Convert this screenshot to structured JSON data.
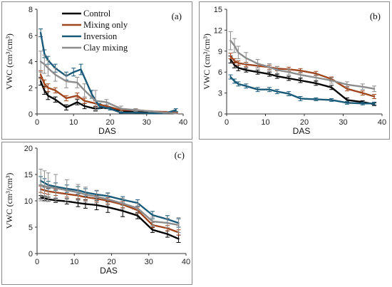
{
  "colors": {
    "Control": "#000000",
    "Mixing only": "#a0461f",
    "Inversion": "#1a5a78",
    "Clay mixing": "#8c8c8c"
  },
  "chart_data": [
    {
      "panel": "(a)",
      "type": "line",
      "xlabel": "DAS",
      "ylabel": "VWC (cm³/cm³)",
      "xlim": [
        0,
        40
      ],
      "ylim": [
        0,
        8
      ],
      "xticks": [
        0,
        10,
        20,
        30,
        40
      ],
      "yticks": [
        0,
        2,
        4,
        6,
        8
      ],
      "legend": {
        "placement": "top-left-inside",
        "entries": [
          "Control",
          "Mixing only",
          "Inversion",
          "Clay mixing"
        ]
      },
      "series": [
        {
          "name": "Control",
          "x": [
            1,
            2,
            3,
            5,
            8,
            11,
            13,
            16,
            19,
            23,
            27,
            31,
            35,
            38
          ],
          "y": [
            2.5,
            1.8,
            1.4,
            1.1,
            0.5,
            0.9,
            0.6,
            0.4,
            0.5,
            0.2,
            0.15,
            0.1,
            0.1,
            0.05
          ],
          "err": [
            0.3,
            0.3,
            0.3,
            0.2,
            0.2,
            0.2,
            0.2,
            0.15,
            0.1,
            0.1,
            0.05,
            0.05,
            0.05,
            0.05
          ]
        },
        {
          "name": "Mixing only",
          "x": [
            1,
            2,
            3,
            5,
            8,
            11,
            13,
            16,
            19,
            23,
            27,
            31,
            35,
            38
          ],
          "y": [
            3.0,
            2.3,
            2.0,
            1.8,
            1.2,
            1.4,
            1.0,
            0.8,
            0.6,
            0.3,
            0.3,
            0.2,
            0.15,
            0.1
          ],
          "err": [
            0.3,
            0.3,
            0.3,
            0.2,
            0.2,
            0.2,
            0.2,
            0.2,
            0.1,
            0.1,
            0.1,
            0.05,
            0.05,
            0.05
          ]
        },
        {
          "name": "Inversion",
          "x": [
            1,
            2,
            3,
            5,
            8,
            10,
            12,
            15,
            17,
            20,
            23,
            27,
            31,
            35,
            38
          ],
          "y": [
            6.2,
            4.6,
            4.1,
            3.5,
            2.9,
            3.2,
            3.4,
            1.5,
            0.6,
            0.4,
            0.1,
            0.1,
            0.05,
            0.05,
            0.3
          ],
          "err": [
            0.3,
            0.3,
            0.3,
            0.3,
            0.3,
            0.3,
            0.4,
            0.3,
            0.2,
            0.1,
            0.05,
            0.05,
            0.05,
            0.05,
            0.1
          ]
        },
        {
          "name": "Clay mixing",
          "x": [
            1,
            2,
            3,
            5,
            8,
            11,
            13,
            16,
            19,
            23,
            27,
            31,
            35,
            38
          ],
          "y": [
            4.0,
            3.8,
            3.5,
            3.0,
            2.5,
            2.4,
            1.8,
            1.0,
            0.9,
            0.4,
            0.3,
            0.2,
            0.1,
            0.05
          ],
          "err": [
            0.8,
            0.7,
            0.6,
            0.5,
            0.5,
            0.4,
            0.5,
            0.8,
            0.2,
            0.2,
            0.1,
            0.05,
            0.05,
            0.05
          ]
        }
      ]
    },
    {
      "panel": "(b)",
      "type": "line",
      "xlabel": "DAS",
      "ylabel": "VWC (cm³/cm³)",
      "xlim": [
        0,
        40
      ],
      "ylim": [
        0,
        15
      ],
      "xticks": [
        0,
        10,
        20,
        30,
        40
      ],
      "yticks": [
        0,
        3,
        6,
        9,
        12,
        15
      ],
      "series": [
        {
          "name": "Control",
          "x": [
            1,
            2,
            3,
            5,
            8,
            11,
            13,
            16,
            19,
            23,
            27,
            31,
            35,
            38
          ],
          "y": [
            7.8,
            7.0,
            6.6,
            6.3,
            6.0,
            5.7,
            5.4,
            5.1,
            4.8,
            4.4,
            3.8,
            2.0,
            1.7,
            1.4
          ],
          "err": [
            0.5,
            0.4,
            0.4,
            0.3,
            0.3,
            0.3,
            0.3,
            0.3,
            0.3,
            0.3,
            0.3,
            0.3,
            0.2,
            0.2
          ]
        },
        {
          "name": "Mixing only",
          "x": [
            1,
            2,
            3,
            5,
            8,
            11,
            13,
            16,
            19,
            23,
            27,
            31,
            35,
            38
          ],
          "y": [
            8.3,
            7.6,
            7.3,
            7.1,
            6.9,
            6.7,
            6.5,
            6.4,
            6.2,
            5.8,
            5.0,
            3.6,
            3.0,
            2.5
          ],
          "err": [
            0.4,
            0.3,
            0.3,
            0.3,
            0.3,
            0.3,
            0.3,
            0.3,
            0.3,
            0.3,
            0.3,
            0.3,
            0.3,
            0.3
          ]
        },
        {
          "name": "Inversion",
          "x": [
            1,
            2,
            3,
            5,
            8,
            11,
            13,
            16,
            19,
            23,
            27,
            31,
            35,
            38
          ],
          "y": [
            5.3,
            4.7,
            4.3,
            4.0,
            3.5,
            3.5,
            3.2,
            2.9,
            2.2,
            2.1,
            2.0,
            1.6,
            1.5,
            1.5
          ],
          "err": [
            0.3,
            0.3,
            0.3,
            0.3,
            0.3,
            0.3,
            0.3,
            0.3,
            0.3,
            0.2,
            0.2,
            0.2,
            0.2,
            0.2
          ]
        },
        {
          "name": "Clay mixing",
          "x": [
            1,
            2,
            3,
            5,
            8,
            11,
            13,
            16,
            19,
            23,
            27,
            31,
            35,
            38
          ],
          "y": [
            10.5,
            9.8,
            8.8,
            8.0,
            7.2,
            6.7,
            6.3,
            6.0,
            5.6,
            5.2,
            4.8,
            4.2,
            3.9,
            3.6
          ],
          "err": [
            1.3,
            1.0,
            0.9,
            0.8,
            0.6,
            0.5,
            0.5,
            0.4,
            0.4,
            0.4,
            0.4,
            0.4,
            0.4,
            0.4
          ]
        }
      ]
    },
    {
      "panel": "(c)",
      "type": "line",
      "xlabel": "DAS",
      "ylabel": "VWC (cm³/cm³)",
      "xlim": [
        0,
        40
      ],
      "ylim": [
        0,
        20
      ],
      "xticks": [
        0,
        10,
        20,
        30,
        40
      ],
      "yticks": [
        0,
        5,
        10,
        15,
        20
      ],
      "series": [
        {
          "name": "Control",
          "x": [
            1,
            2,
            3,
            5,
            8,
            11,
            13,
            16,
            19,
            23,
            27,
            31,
            35,
            38
          ],
          "y": [
            10.7,
            10.5,
            10.3,
            10.1,
            9.9,
            9.6,
            9.4,
            9.2,
            8.8,
            8.1,
            7.2,
            4.5,
            3.7,
            2.8
          ],
          "err": [
            0.3,
            0.4,
            0.4,
            0.4,
            0.5,
            0.7,
            0.8,
            0.9,
            1.0,
            1.1,
            0.6,
            0.5,
            0.6,
            0.7
          ]
        },
        {
          "name": "Mixing only",
          "x": [
            1,
            2,
            3,
            5,
            8,
            11,
            13,
            16,
            19,
            23,
            27,
            31,
            35,
            38
          ],
          "y": [
            12.2,
            12.0,
            11.8,
            11.6,
            11.3,
            11.0,
            10.7,
            10.4,
            10.0,
            9.3,
            8.2,
            5.4,
            4.8,
            4.0
          ],
          "err": [
            0.6,
            0.6,
            0.6,
            0.6,
            0.6,
            0.6,
            0.6,
            0.6,
            0.6,
            0.6,
            0.6,
            0.5,
            0.5,
            0.5
          ]
        },
        {
          "name": "Inversion",
          "x": [
            1,
            2,
            3,
            5,
            8,
            11,
            13,
            16,
            19,
            23,
            27,
            31,
            35,
            38
          ],
          "y": [
            13.8,
            13.4,
            13.0,
            12.7,
            12.3,
            12.0,
            11.6,
            11.2,
            10.9,
            10.2,
            9.6,
            7.3,
            6.5,
            5.8
          ],
          "err": [
            0.8,
            0.8,
            0.7,
            0.7,
            0.7,
            0.7,
            0.7,
            0.7,
            0.6,
            0.6,
            0.6,
            0.7,
            0.7,
            0.8
          ]
        },
        {
          "name": "Clay mixing",
          "x": [
            1,
            2,
            3,
            5,
            8,
            11,
            13,
            16,
            19,
            23,
            27,
            31,
            35,
            38
          ],
          "y": [
            13.0,
            12.8,
            12.6,
            12.4,
            12.0,
            11.6,
            11.2,
            10.8,
            10.3,
            9.5,
            8.6,
            6.1,
            5.8,
            5.4
          ],
          "err": [
            3.0,
            2.9,
            2.7,
            2.6,
            2.0,
            1.5,
            1.4,
            1.2,
            1.1,
            1.0,
            0.9,
            0.8,
            0.9,
            1.4
          ]
        }
      ]
    }
  ]
}
